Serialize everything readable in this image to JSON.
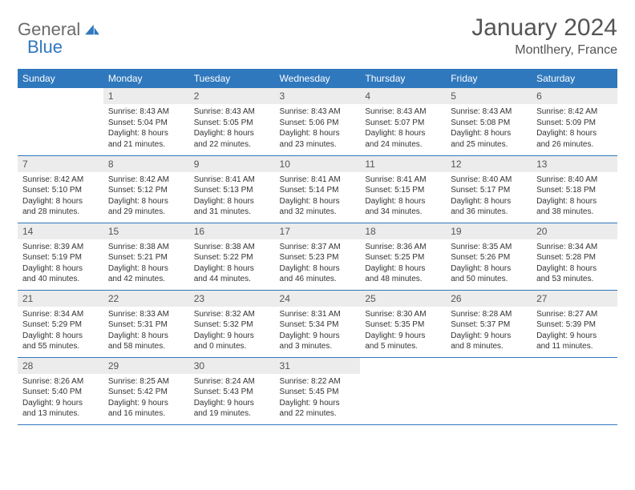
{
  "brand": {
    "part1": "General",
    "part2": "Blue"
  },
  "title": "January 2024",
  "location": "Montlhery, France",
  "colors": {
    "header_bg": "#2f78bd",
    "header_fg": "#ffffff",
    "daynum_bg": "#ececec",
    "text": "#333333",
    "border": "#2f78bd",
    "logo_gray": "#6b6b6b",
    "logo_blue": "#2f78bd"
  },
  "weekdays": [
    "Sunday",
    "Monday",
    "Tuesday",
    "Wednesday",
    "Thursday",
    "Friday",
    "Saturday"
  ],
  "first_weekday_index": 1,
  "days": [
    {
      "n": 1,
      "sunrise": "8:43 AM",
      "sunset": "5:04 PM",
      "dl_h": 8,
      "dl_m": 21
    },
    {
      "n": 2,
      "sunrise": "8:43 AM",
      "sunset": "5:05 PM",
      "dl_h": 8,
      "dl_m": 22
    },
    {
      "n": 3,
      "sunrise": "8:43 AM",
      "sunset": "5:06 PM",
      "dl_h": 8,
      "dl_m": 23
    },
    {
      "n": 4,
      "sunrise": "8:43 AM",
      "sunset": "5:07 PM",
      "dl_h": 8,
      "dl_m": 24
    },
    {
      "n": 5,
      "sunrise": "8:43 AM",
      "sunset": "5:08 PM",
      "dl_h": 8,
      "dl_m": 25
    },
    {
      "n": 6,
      "sunrise": "8:42 AM",
      "sunset": "5:09 PM",
      "dl_h": 8,
      "dl_m": 26
    },
    {
      "n": 7,
      "sunrise": "8:42 AM",
      "sunset": "5:10 PM",
      "dl_h": 8,
      "dl_m": 28
    },
    {
      "n": 8,
      "sunrise": "8:42 AM",
      "sunset": "5:12 PM",
      "dl_h": 8,
      "dl_m": 29
    },
    {
      "n": 9,
      "sunrise": "8:41 AM",
      "sunset": "5:13 PM",
      "dl_h": 8,
      "dl_m": 31
    },
    {
      "n": 10,
      "sunrise": "8:41 AM",
      "sunset": "5:14 PM",
      "dl_h": 8,
      "dl_m": 32
    },
    {
      "n": 11,
      "sunrise": "8:41 AM",
      "sunset": "5:15 PM",
      "dl_h": 8,
      "dl_m": 34
    },
    {
      "n": 12,
      "sunrise": "8:40 AM",
      "sunset": "5:17 PM",
      "dl_h": 8,
      "dl_m": 36
    },
    {
      "n": 13,
      "sunrise": "8:40 AM",
      "sunset": "5:18 PM",
      "dl_h": 8,
      "dl_m": 38
    },
    {
      "n": 14,
      "sunrise": "8:39 AM",
      "sunset": "5:19 PM",
      "dl_h": 8,
      "dl_m": 40
    },
    {
      "n": 15,
      "sunrise": "8:38 AM",
      "sunset": "5:21 PM",
      "dl_h": 8,
      "dl_m": 42
    },
    {
      "n": 16,
      "sunrise": "8:38 AM",
      "sunset": "5:22 PM",
      "dl_h": 8,
      "dl_m": 44
    },
    {
      "n": 17,
      "sunrise": "8:37 AM",
      "sunset": "5:23 PM",
      "dl_h": 8,
      "dl_m": 46
    },
    {
      "n": 18,
      "sunrise": "8:36 AM",
      "sunset": "5:25 PM",
      "dl_h": 8,
      "dl_m": 48
    },
    {
      "n": 19,
      "sunrise": "8:35 AM",
      "sunset": "5:26 PM",
      "dl_h": 8,
      "dl_m": 50
    },
    {
      "n": 20,
      "sunrise": "8:34 AM",
      "sunset": "5:28 PM",
      "dl_h": 8,
      "dl_m": 53
    },
    {
      "n": 21,
      "sunrise": "8:34 AM",
      "sunset": "5:29 PM",
      "dl_h": 8,
      "dl_m": 55
    },
    {
      "n": 22,
      "sunrise": "8:33 AM",
      "sunset": "5:31 PM",
      "dl_h": 8,
      "dl_m": 58
    },
    {
      "n": 23,
      "sunrise": "8:32 AM",
      "sunset": "5:32 PM",
      "dl_h": 9,
      "dl_m": 0
    },
    {
      "n": 24,
      "sunrise": "8:31 AM",
      "sunset": "5:34 PM",
      "dl_h": 9,
      "dl_m": 3
    },
    {
      "n": 25,
      "sunrise": "8:30 AM",
      "sunset": "5:35 PM",
      "dl_h": 9,
      "dl_m": 5
    },
    {
      "n": 26,
      "sunrise": "8:28 AM",
      "sunset": "5:37 PM",
      "dl_h": 9,
      "dl_m": 8
    },
    {
      "n": 27,
      "sunrise": "8:27 AM",
      "sunset": "5:39 PM",
      "dl_h": 9,
      "dl_m": 11
    },
    {
      "n": 28,
      "sunrise": "8:26 AM",
      "sunset": "5:40 PM",
      "dl_h": 9,
      "dl_m": 13
    },
    {
      "n": 29,
      "sunrise": "8:25 AM",
      "sunset": "5:42 PM",
      "dl_h": 9,
      "dl_m": 16
    },
    {
      "n": 30,
      "sunrise": "8:24 AM",
      "sunset": "5:43 PM",
      "dl_h": 9,
      "dl_m": 19
    },
    {
      "n": 31,
      "sunrise": "8:22 AM",
      "sunset": "5:45 PM",
      "dl_h": 9,
      "dl_m": 22
    }
  ],
  "labels": {
    "sunrise": "Sunrise:",
    "sunset": "Sunset:",
    "daylight": "Daylight:",
    "hours": "hours",
    "and": "and",
    "minutes": "minutes."
  }
}
